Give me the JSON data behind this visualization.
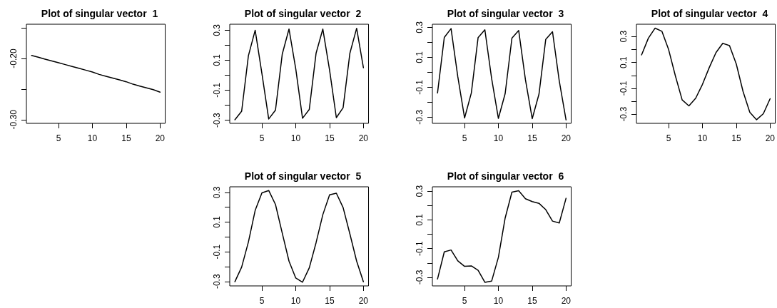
{
  "chart_data": [
    {
      "type": "line",
      "title": "Plot of singular vector  1",
      "x": [
        1,
        2,
        3,
        4,
        5,
        6,
        7,
        8,
        9,
        10,
        11,
        12,
        13,
        14,
        15,
        16,
        17,
        18,
        19,
        20
      ],
      "values": [
        -0.195,
        -0.198,
        -0.201,
        -0.204,
        -0.207,
        -0.21,
        -0.213,
        -0.216,
        -0.219,
        -0.222,
        -0.226,
        -0.229,
        -0.232,
        -0.235,
        -0.238,
        -0.242,
        -0.245,
        -0.248,
        -0.251,
        -0.255
      ],
      "color": "#000000",
      "xlim": [
        0.24,
        20.76
      ],
      "xticks": [
        5,
        10,
        15,
        20
      ],
      "ylim": [
        -0.306,
        -0.144
      ],
      "yticks": [
        {
          "value": -0.3,
          "label": "-0.30"
        },
        {
          "value": -0.25,
          "label": null
        },
        {
          "value": -0.2,
          "label": "-0.20"
        },
        {
          "value": -0.15,
          "label": null
        }
      ],
      "marker": "none",
      "line_style": "solid"
    },
    {
      "type": "line",
      "title": "Plot of singular vector  2",
      "x": [
        1,
        2,
        3,
        4,
        5,
        6,
        7,
        8,
        9,
        10,
        11,
        12,
        13,
        14,
        15,
        16,
        17,
        18,
        19,
        20
      ],
      "values": [
        -0.297,
        -0.24,
        0.13,
        0.3,
        0.01,
        -0.292,
        -0.233,
        0.14,
        0.308,
        0.042,
        -0.287,
        -0.228,
        0.146,
        0.308,
        0.034,
        -0.283,
        -0.217,
        0.146,
        0.313,
        0.05
      ],
      "color": "#000000",
      "xlim": [
        0.24,
        20.76
      ],
      "xticks": [
        5,
        10,
        15,
        20
      ],
      "ylim": [
        -0.321,
        0.34
      ],
      "yticks": [
        -0.3,
        {
          "value": -0.2,
          "label": null
        },
        -0.1,
        {
          "value": 0,
          "label": null
        },
        0.1,
        {
          "value": 0.2,
          "label": null
        },
        0.3
      ],
      "marker": "none",
      "line_style": "solid"
    },
    {
      "type": "line",
      "title": "Plot of singular vector  3",
      "x": [
        1,
        2,
        3,
        4,
        5,
        6,
        7,
        8,
        9,
        10,
        11,
        12,
        13,
        14,
        15,
        16,
        17,
        18,
        19,
        20
      ],
      "values": [
        -0.138,
        0.233,
        0.292,
        -0.03,
        -0.305,
        -0.138,
        0.232,
        0.284,
        -0.042,
        -0.308,
        -0.142,
        0.228,
        0.279,
        -0.05,
        -0.31,
        -0.146,
        0.22,
        0.271,
        -0.058,
        -0.318
      ],
      "color": "#000000",
      "xlim": [
        0.24,
        20.76
      ],
      "xticks": [
        5,
        10,
        15,
        20
      ],
      "ylim": [
        -0.341,
        0.321
      ],
      "yticks": [
        -0.3,
        {
          "value": -0.2,
          "label": null
        },
        -0.1,
        {
          "value": 0,
          "label": null
        },
        0.1,
        {
          "value": 0.2,
          "label": null
        },
        0.3
      ],
      "marker": "none",
      "line_style": "solid"
    },
    {
      "type": "line",
      "title": "Plot of singular vector  4",
      "x": [
        1,
        2,
        3,
        4,
        5,
        6,
        7,
        8,
        9,
        10,
        11,
        12,
        13,
        14,
        15,
        16,
        17,
        18,
        19,
        20
      ],
      "values": [
        0.158,
        0.287,
        0.365,
        0.341,
        0.199,
        -0.004,
        -0.189,
        -0.235,
        -0.176,
        -0.069,
        0.06,
        0.176,
        0.248,
        0.23,
        0.088,
        -0.124,
        -0.285,
        -0.342,
        -0.296,
        -0.18
      ],
      "color": "#000000",
      "xlim": [
        0.24,
        20.76
      ],
      "xticks": [
        5,
        10,
        15,
        20
      ],
      "ylim": [
        -0.37,
        0.395
      ],
      "yticks": [
        -0.3,
        {
          "value": -0.2,
          "label": null
        },
        -0.1,
        {
          "value": 0,
          "label": null
        },
        0.1,
        {
          "value": 0.2,
          "label": null
        },
        0.3
      ],
      "marker": "none",
      "line_style": "solid"
    },
    {
      "type": "line",
      "title": "Plot of singular vector  5",
      "x": [
        1,
        2,
        3,
        4,
        5,
        6,
        7,
        8,
        9,
        10,
        11,
        12,
        13,
        14,
        15,
        16,
        17,
        18,
        19,
        20
      ],
      "values": [
        -0.302,
        -0.203,
        -0.034,
        0.179,
        0.297,
        0.313,
        0.219,
        0.026,
        -0.163,
        -0.277,
        -0.305,
        -0.208,
        -0.039,
        0.15,
        0.284,
        0.295,
        0.198,
        0.021,
        -0.163,
        -0.302
      ],
      "color": "#000000",
      "xlim": [
        0.24,
        20.76
      ],
      "xticks": [
        5,
        10,
        15,
        20
      ],
      "ylim": [
        -0.33,
        0.338
      ],
      "yticks": [
        -0.3,
        {
          "value": -0.2,
          "label": null
        },
        -0.1,
        {
          "value": 0,
          "label": null
        },
        0.1,
        {
          "value": 0.2,
          "label": null
        },
        0.3
      ],
      "marker": "none",
      "line_style": "solid"
    },
    {
      "type": "line",
      "title": "Plot of singular vector  6",
      "x": [
        1,
        2,
        3,
        4,
        5,
        6,
        7,
        8,
        9,
        10,
        11,
        12,
        13,
        14,
        15,
        16,
        17,
        18,
        19,
        20
      ],
      "values": [
        -0.312,
        -0.123,
        -0.11,
        -0.186,
        -0.224,
        -0.221,
        -0.252,
        -0.335,
        -0.327,
        -0.161,
        0.113,
        0.293,
        0.303,
        0.247,
        0.227,
        0.215,
        0.171,
        0.091,
        0.078,
        0.25
      ],
      "color": "#000000",
      "xlim": [
        0.24,
        20.76
      ],
      "xticks": [
        5,
        10,
        15,
        20
      ],
      "ylim": [
        -0.36,
        0.33
      ],
      "yticks": [
        -0.3,
        {
          "value": -0.2,
          "label": null
        },
        -0.1,
        {
          "value": 0,
          "label": null
        },
        0.1,
        {
          "value": 0.2,
          "label": null
        },
        0.3
      ],
      "marker": "none",
      "line_style": "solid"
    }
  ]
}
